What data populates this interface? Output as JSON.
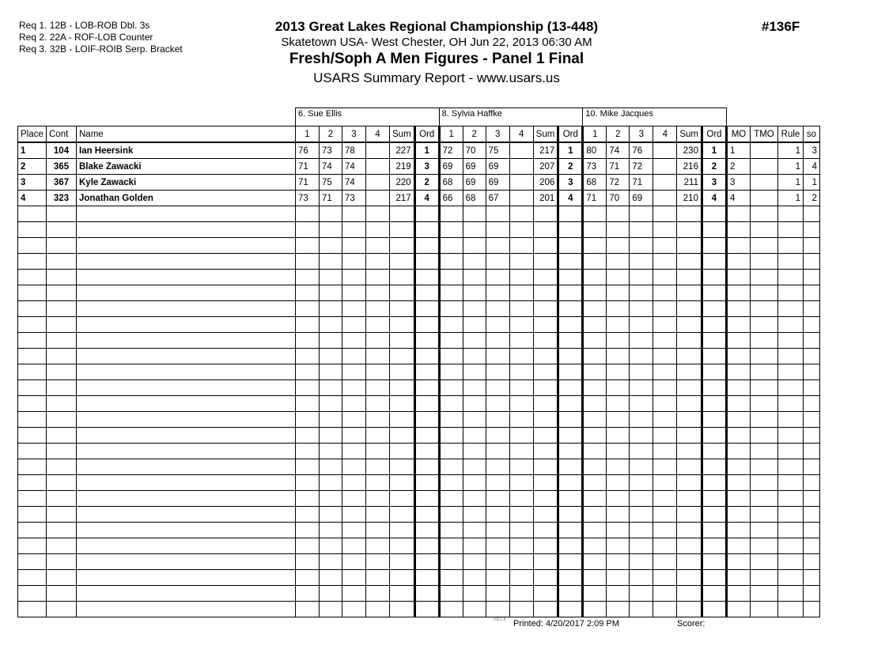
{
  "requirements": [
    "Req  1.  12B - LOB-ROB Dbl. 3s",
    "Req  2.  22A - ROF-LOB Counter",
    "Req  3.  32B - LOIF-ROIB Serp. Bracket"
  ],
  "header": {
    "title": "2013 Great Lakes Regional Championship (13-448)",
    "location": "Skatetown USA- West Chester, OH  Jun 22, 2013  06:30 AM",
    "event": "Fresh/Soph A Men Figures - Panel 1 Final",
    "report": "USARS Summary Report - www.usars.us",
    "event_number": "#136F"
  },
  "judges": [
    "6.  Sue Ellis",
    "8.  Sylvia  Haffke",
    "10.  Mike Jacques"
  ],
  "columns": {
    "place": "Place",
    "cont": "Cont",
    "name": "Name",
    "judge_cols": [
      "1",
      "2",
      "3",
      "4",
      "Sum",
      "Ord"
    ],
    "mo": "MO",
    "tmo": "TMO",
    "rule": "Rule",
    "so": "so"
  },
  "rows": [
    {
      "place": "1",
      "cont": "104",
      "name": "Ian Heersink",
      "judges": [
        [
          "76",
          "73",
          "78",
          "",
          "227",
          "1"
        ],
        [
          "72",
          "70",
          "75",
          "",
          "217",
          "1"
        ],
        [
          "80",
          "74",
          "76",
          "",
          "230",
          "1"
        ]
      ],
      "mo": "1",
      "tmo": "",
      "rule": "1",
      "so": "3"
    },
    {
      "place": "2",
      "cont": "365",
      "name": "Blake Zawacki",
      "judges": [
        [
          "71",
          "74",
          "74",
          "",
          "219",
          "3"
        ],
        [
          "69",
          "69",
          "69",
          "",
          "207",
          "2"
        ],
        [
          "73",
          "71",
          "72",
          "",
          "216",
          "2"
        ]
      ],
      "mo": "2",
      "tmo": "",
      "rule": "1",
      "so": "4"
    },
    {
      "place": "3",
      "cont": "367",
      "name": "Kyle Zawacki",
      "judges": [
        [
          "71",
          "75",
          "74",
          "",
          "220",
          "2"
        ],
        [
          "68",
          "69",
          "69",
          "",
          "206",
          "3"
        ],
        [
          "68",
          "72",
          "71",
          "",
          "211",
          "3"
        ]
      ],
      "mo": "3",
      "tmo": "",
      "rule": "1",
      "so": "1"
    },
    {
      "place": "4",
      "cont": "323",
      "name": "Jonathan Golden",
      "judges": [
        [
          "73",
          "71",
          "73",
          "",
          "217",
          "4"
        ],
        [
          "66",
          "68",
          "67",
          "",
          "201",
          "4"
        ],
        [
          "71",
          "70",
          "69",
          "",
          "210",
          "4"
        ]
      ],
      "mo": "4",
      "tmo": "",
      "rule": "1",
      "so": "2"
    }
  ],
  "footer": {
    "version": "3.8.1.8",
    "printed": "Printed:  4/20/2017  2:09 PM",
    "scorer": "Scorer:"
  }
}
